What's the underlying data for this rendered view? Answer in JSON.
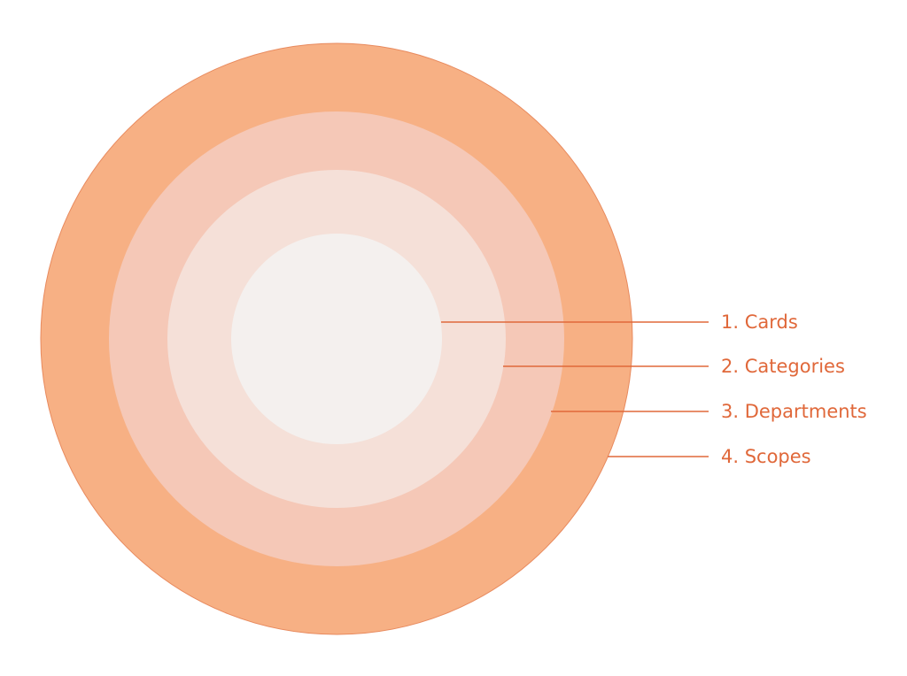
{
  "diagram": {
    "type": "concentric-circles",
    "colors": {
      "outer_ring": "#f7b084",
      "second_ring": "#f5c8b7",
      "third_ring": "#f5e0d8",
      "inner_circle": "#f4f0ee",
      "outline": "#e88a5e",
      "accent": "#e0683a"
    },
    "levels": [
      {
        "label": "1. Cards"
      },
      {
        "label": "2. Categories"
      },
      {
        "label": "3. Departments"
      },
      {
        "label": "4. Scopes"
      }
    ]
  }
}
